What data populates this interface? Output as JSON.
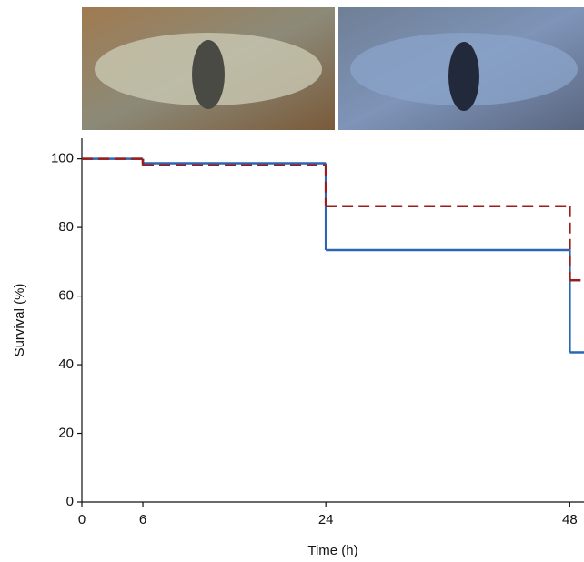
{
  "chart_data": {
    "type": "step",
    "x_label": "Time (h)",
    "y_label": "Survival (%)",
    "x": [
      0,
      6,
      24,
      48
    ],
    "series": [
      {
        "color": "#2b66b3",
        "dash": false,
        "values": [
          100,
          98.7,
          73.4,
          43.6
        ]
      },
      {
        "color": "#9b1c1c",
        "dash": true,
        "values": [
          100,
          98.1,
          86.2,
          64.6
        ]
      }
    ],
    "xlim": [
      0,
      49.4
    ],
    "ylim": [
      0,
      106
    ],
    "xticks": [
      0,
      6,
      24,
      48
    ],
    "yticks": [
      0,
      20,
      40,
      60,
      80,
      100
    ]
  }
}
